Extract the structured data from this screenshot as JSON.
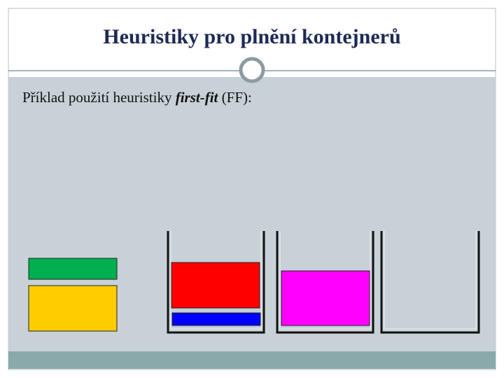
{
  "header": {
    "title": "Heuristiky pro plnění kontejnerů"
  },
  "body": {
    "text_parts": [
      "Příklad použití heuristiky ",
      "first-fit",
      " (FF):"
    ]
  }
}
